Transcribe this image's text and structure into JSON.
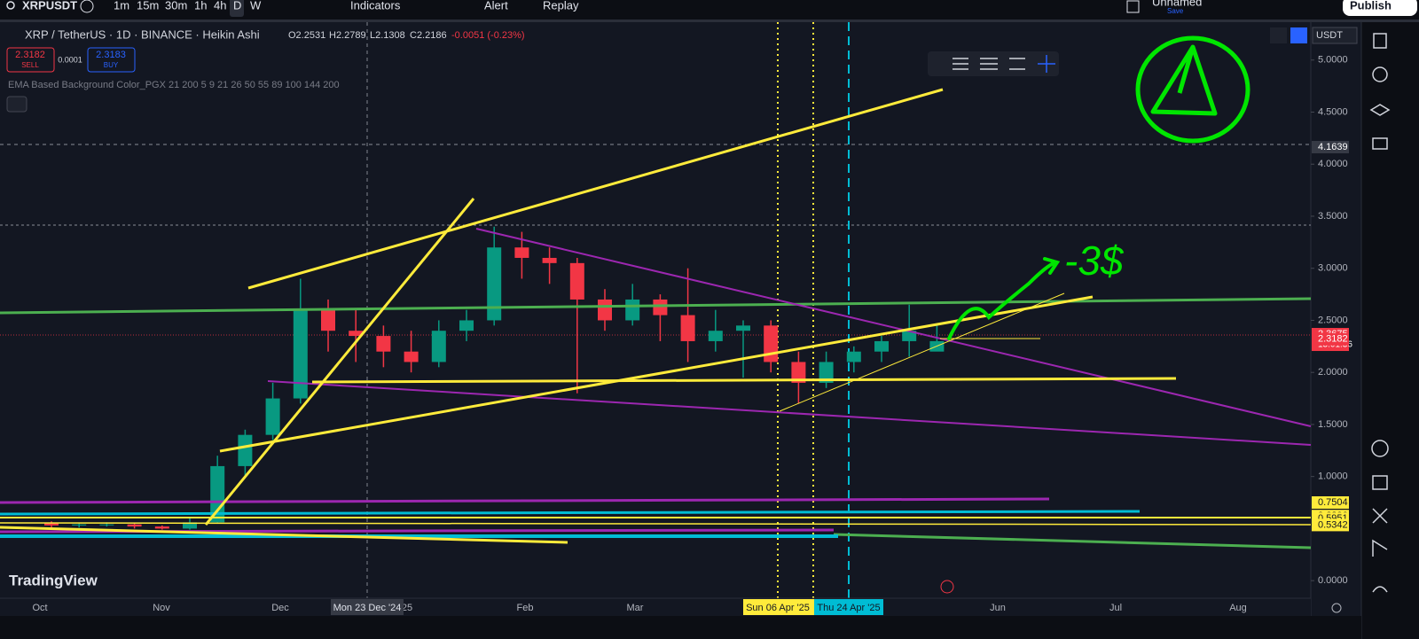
{
  "toolbar": {
    "symbol": "XRPUSDT",
    "intervals": [
      "1m",
      "15m",
      "30m",
      "1h",
      "4h",
      "D",
      "W"
    ],
    "indicators": "Indicators",
    "alert": "Alert",
    "replay": "Replay",
    "layout_name": "Unnamed",
    "save": "Save",
    "publish": "Publish"
  },
  "legend": {
    "title": "XRP / TetherUS · 1D · BINANCE · Heikin Ashi",
    "open": "O2.2531",
    "high": "H2.2789",
    "low": "L2.1308",
    "close": "C2.2186",
    "change": "-0.0051 (-0.23%)",
    "sell_price": "2.3182",
    "sell": "SELL",
    "spread": "0.0001",
    "buy_price": "2.3183",
    "buy": "BUY",
    "indicator": "EMA Based Background Color_PGX 21 200 5 9 21 26 50 55 89 100 144 200"
  },
  "currency": "USDT",
  "annotation": "-3$",
  "logo": "TradingView",
  "date_axis": {
    "labels": [
      "Oct",
      "Nov",
      "Dec",
      "25",
      "Feb",
      "Mar",
      "Jun",
      "Jul",
      "Aug"
    ],
    "crosshair_date": "Mon 23 Dec '24",
    "marker_1": "Sun 06 Apr '25",
    "marker_2": "Thu 24 Apr '25"
  },
  "chart_data": {
    "type": "candlestick",
    "open": [
      0.55,
      0.53,
      0.54,
      0.54,
      0.52,
      0.5,
      0.56,
      1.1,
      1.4,
      1.75,
      2.6,
      2.4,
      2.35,
      2.2,
      2.1,
      2.4,
      2.5,
      3.2,
      3.1,
      3.05,
      2.7,
      2.5,
      2.7,
      2.55,
      2.3,
      2.4,
      2.45,
      2.1,
      1.9,
      2.1,
      2.2,
      2.3,
      2.2
    ],
    "high": [
      0.57,
      0.55,
      0.56,
      0.55,
      0.53,
      0.6,
      1.2,
      1.45,
      1.9,
      2.9,
      2.7,
      2.6,
      2.45,
      2.4,
      2.5,
      2.6,
      3.4,
      3.35,
      3.2,
      3.1,
      2.8,
      2.85,
      2.75,
      3.0,
      2.6,
      2.5,
      2.5,
      2.2,
      2.2,
      2.25,
      2.35,
      2.65,
      2.45
    ],
    "low": [
      0.5,
      0.51,
      0.52,
      0.5,
      0.49,
      0.49,
      0.55,
      1.0,
      1.35,
      1.7,
      2.2,
      2.1,
      2.05,
      2.0,
      2.05,
      2.3,
      2.45,
      2.9,
      2.85,
      1.8,
      2.4,
      2.45,
      2.3,
      2.1,
      2.2,
      1.95,
      2.0,
      1.7,
      1.85,
      2.0,
      2.1,
      2.15,
      2.25
    ],
    "close": [
      0.53,
      0.54,
      0.54,
      0.52,
      0.5,
      0.56,
      1.1,
      1.4,
      1.75,
      2.6,
      2.4,
      2.35,
      2.2,
      2.1,
      2.4,
      2.5,
      3.2,
      3.1,
      3.05,
      2.7,
      2.5,
      2.7,
      2.55,
      2.3,
      2.4,
      2.45,
      2.1,
      1.9,
      2.1,
      2.2,
      2.3,
      2.4,
      2.3
    ],
    "up_color": "#089981",
    "down_color": "#f23645",
    "ylim": [
      -0.169,
      5.364
    ],
    "yticks": [
      {
        "value": 5,
        "label": "5.0000"
      },
      {
        "value": 4.5,
        "label": "4.5000"
      },
      {
        "value": 4,
        "label": "4.0000"
      },
      {
        "value": 3.5,
        "label": "3.5000"
      },
      {
        "value": 3,
        "label": "3.0000"
      },
      {
        "value": 2.5,
        "label": "2.5000"
      },
      {
        "value": 2,
        "label": "2.0000"
      },
      {
        "value": 1.5,
        "label": "1.5000"
      },
      {
        "value": 1,
        "label": "1.0000"
      },
      {
        "value": 0,
        "label": "0.0000"
      }
    ],
    "price_tags": [
      {
        "value": 4.1639,
        "color": "#363a45"
      },
      {
        "value": 2.3675,
        "color": "#f23645"
      },
      {
        "value": 2.3182,
        "color": "#f23645"
      },
      {
        "value": 0.7504,
        "color": "#ffeb3b"
      },
      {
        "value": 0.6206,
        "color": "#ffeb3b"
      },
      {
        "value": 0.5951,
        "color": "#ffeb3b"
      },
      {
        "value": 0.5342,
        "color": "#ffeb3b"
      }
    ],
    "countdown": "13:01:36"
  }
}
